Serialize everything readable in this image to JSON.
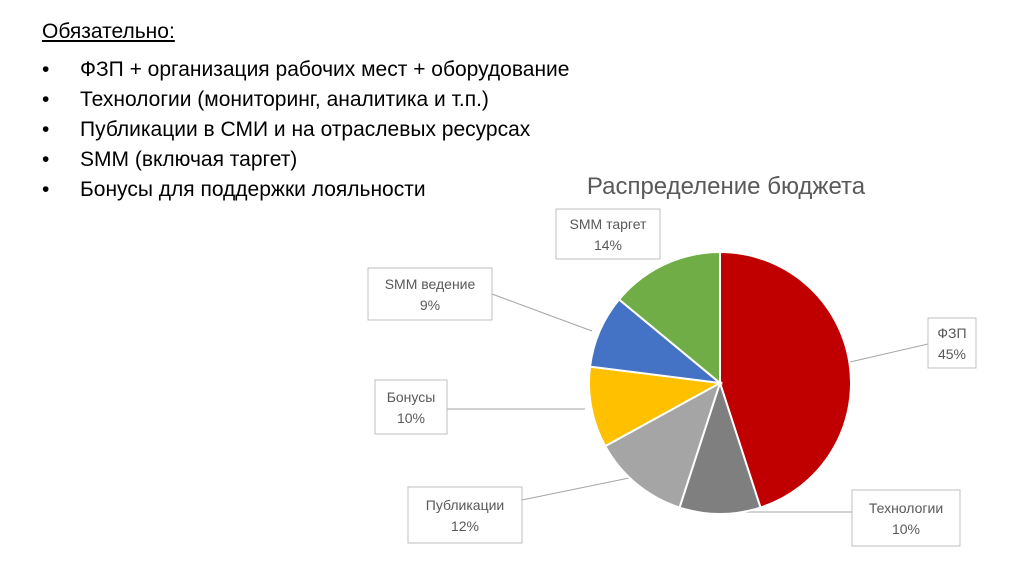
{
  "slide": {
    "heading": "Обязательно:",
    "bullets": [
      "ФЗП + организация рабочих мест + оборудование",
      "Технологии (мониторинг, аналитика и т.п.)",
      "Публикации в СМИ и на отраслевых ресурсах",
      "SMM (включая таргет)",
      "Бонусы для поддержки лояльности"
    ],
    "bullet_symbol": "•"
  },
  "chart_data": {
    "type": "pie",
    "title": "Распределение бюджета",
    "start_angle_deg": 0,
    "direction": "clockwise",
    "slices": [
      {
        "label": "ФЗП",
        "percent_label": "45%",
        "value": 45,
        "color": "#c00000"
      },
      {
        "label": "Технологии",
        "percent_label": "10%",
        "value": 10,
        "color": "#7f7f7f"
      },
      {
        "label": "Публикации",
        "percent_label": "12%",
        "value": 12,
        "color": "#a5a5a5"
      },
      {
        "label": "Бонусы",
        "percent_label": "10%",
        "value": 10,
        "color": "#ffc000"
      },
      {
        "label": "SMM ведение",
        "percent_label": "9%",
        "value": 9,
        "color": "#4472c4"
      },
      {
        "label": "SMM таргет",
        "percent_label": "14%",
        "value": 14,
        "color": "#70ad47"
      }
    ]
  }
}
